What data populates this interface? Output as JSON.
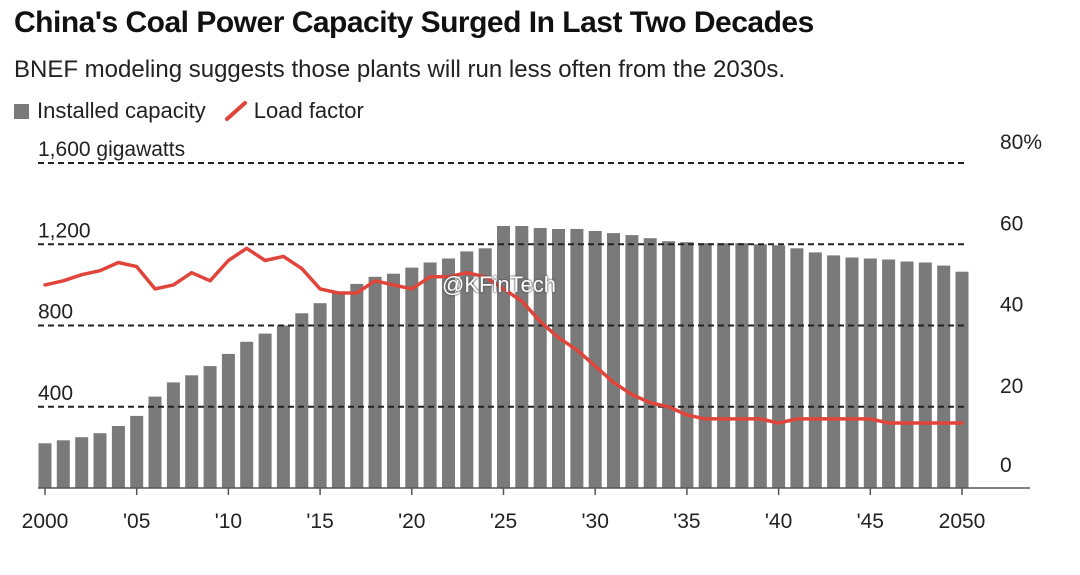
{
  "title": "China's Coal Power Capacity Surged In Last Two Decades",
  "subtitle": "BNEF modeling suggests those plants will run less often from the 2030s.",
  "watermark": "@KFinTech",
  "colors": {
    "bar": "#7a7a7a",
    "line": "#e0443a",
    "grid": "#222222",
    "text": "#222222"
  },
  "chart_data": {
    "type": "bar",
    "title": "China's Coal Power Capacity Surged In Last Two Decades",
    "legend": [
      "Installed capacity",
      "Load factor"
    ],
    "left_axis": {
      "label": "gigawatts",
      "ylim": [
        0,
        1600
      ],
      "ticks": [
        1600,
        1200,
        800,
        400
      ],
      "tick_labels": [
        "1,600 gigawatts",
        "1,200",
        "800",
        "400"
      ]
    },
    "right_axis": {
      "label": "Load factor (%)",
      "ylim": [
        0,
        80
      ],
      "ticks": [
        80,
        60,
        40,
        20,
        0
      ],
      "tick_labels": [
        "80%",
        "60",
        "40",
        "20",
        "0"
      ]
    },
    "x_tick_years": [
      2000,
      2005,
      2010,
      2015,
      2020,
      2025,
      2030,
      2035,
      2040,
      2045,
      2050
    ],
    "x_tick_labels": [
      "2000",
      "'05",
      "'10",
      "'15",
      "'20",
      "'25",
      "'30",
      "'35",
      "'40",
      "'45",
      "2050"
    ],
    "series": [
      {
        "name": "Installed capacity",
        "kind": "bar",
        "axis": "left",
        "x": [
          2000,
          2001,
          2002,
          2003,
          2004,
          2005,
          2006,
          2007,
          2008,
          2009,
          2010,
          2011,
          2012,
          2013,
          2014,
          2015,
          2016,
          2017,
          2018,
          2019,
          2020,
          2021,
          2022,
          2023,
          2024,
          2025,
          2026,
          2027,
          2028,
          2029,
          2030,
          2031,
          2032,
          2033,
          2034,
          2035,
          2036,
          2037,
          2038,
          2039,
          2040,
          2041,
          2042,
          2043,
          2044,
          2045,
          2046,
          2047,
          2048,
          2049,
          2050
        ],
        "values": [
          220,
          235,
          250,
          270,
          305,
          355,
          450,
          520,
          555,
          600,
          660,
          720,
          760,
          800,
          860,
          910,
          965,
          1005,
          1040,
          1055,
          1085,
          1110,
          1130,
          1165,
          1180,
          1290,
          1290,
          1280,
          1275,
          1275,
          1265,
          1255,
          1245,
          1230,
          1215,
          1210,
          1205,
          1205,
          1205,
          1200,
          1195,
          1180,
          1160,
          1145,
          1135,
          1130,
          1125,
          1115,
          1110,
          1095,
          1065
        ]
      },
      {
        "name": "Load factor",
        "kind": "line",
        "axis": "right",
        "x": [
          2000,
          2001,
          2002,
          2003,
          2004,
          2005,
          2006,
          2007,
          2008,
          2009,
          2010,
          2011,
          2012,
          2013,
          2014,
          2015,
          2016,
          2017,
          2018,
          2019,
          2020,
          2021,
          2022,
          2023,
          2024,
          2025,
          2026,
          2027,
          2028,
          2029,
          2030,
          2031,
          2032,
          2033,
          2034,
          2035,
          2036,
          2037,
          2038,
          2039,
          2040,
          2041,
          2042,
          2043,
          2044,
          2045,
          2046,
          2047,
          2048,
          2049,
          2050
        ],
        "values": [
          50,
          51,
          52.5,
          53.5,
          55.5,
          54.5,
          49,
          50,
          53,
          51,
          56,
          59,
          56,
          57,
          54,
          49,
          48,
          48,
          51,
          50,
          49,
          52,
          52,
          53,
          52,
          49,
          46,
          41,
          37,
          34,
          30,
          26,
          23,
          21,
          20,
          18,
          17,
          17,
          17,
          17,
          16,
          17,
          17,
          17,
          17,
          17,
          16,
          16,
          16,
          16,
          16
        ]
      }
    ]
  }
}
